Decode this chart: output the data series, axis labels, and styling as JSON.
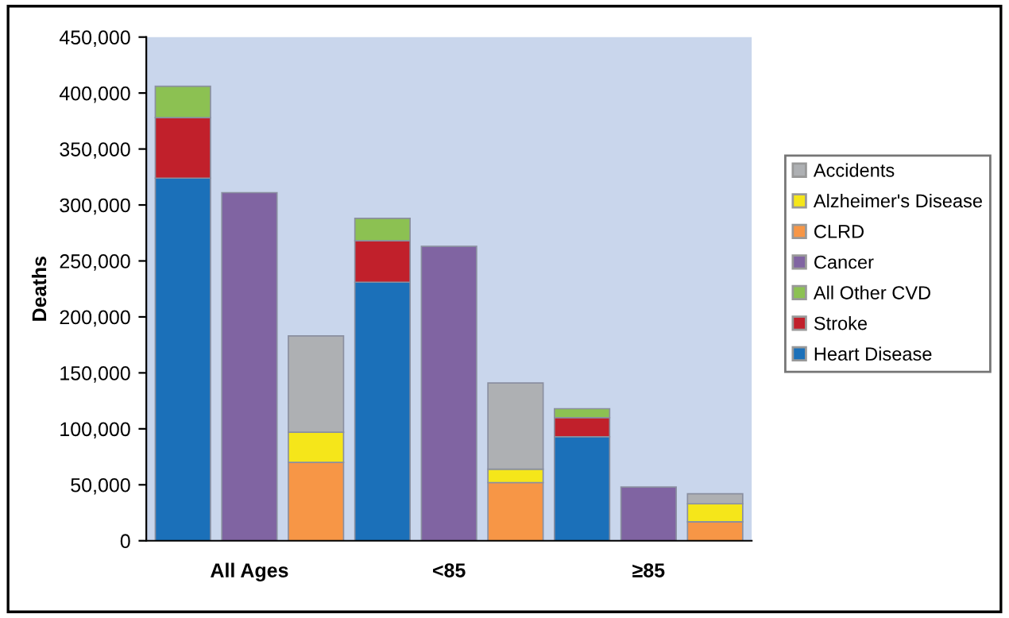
{
  "chart_data": {
    "type": "bar",
    "stacked": true,
    "ylabel": "Deaths",
    "categories": [
      null,
      "All Ages",
      null,
      null,
      "<85",
      null,
      null,
      "≥85",
      null
    ],
    "series": [
      {
        "name": "Heart Disease",
        "color": "#1b70b9",
        "values": [
          324000,
          null,
          null,
          231000,
          null,
          null,
          93000,
          null,
          null
        ]
      },
      {
        "name": "Stroke",
        "color": "#c1202b",
        "values": [
          54000,
          null,
          null,
          37000,
          null,
          null,
          17000,
          null,
          null
        ]
      },
      {
        "name": "All Other CVD",
        "color": "#8cc152",
        "values": [
          28000,
          null,
          null,
          20000,
          null,
          null,
          8000,
          null,
          null
        ]
      },
      {
        "name": "Cancer",
        "color": "#8064a2",
        "values": [
          null,
          311000,
          null,
          null,
          263000,
          null,
          null,
          48000,
          null
        ]
      },
      {
        "name": "CLRD",
        "color": "#f79646",
        "values": [
          null,
          null,
          70000,
          null,
          null,
          52000,
          null,
          null,
          17000
        ]
      },
      {
        "name": "Alzheimer's Disease",
        "color": "#f5e61a",
        "values": [
          null,
          null,
          27000,
          null,
          null,
          12000,
          null,
          null,
          16000
        ]
      },
      {
        "name": "Accidents",
        "color": "#aeb0b3",
        "values": [
          null,
          null,
          86000,
          null,
          null,
          77000,
          null,
          null,
          9000
        ]
      }
    ],
    "ylim": [
      0,
      450000
    ],
    "yticks": [
      0,
      {
        "value": 50000,
        "label": "50,000"
      },
      {
        "value": 100000,
        "label": "100,000"
      },
      {
        "value": 150000,
        "label": "150,000"
      },
      {
        "value": 200000,
        "label": "200,000"
      },
      {
        "value": 250000,
        "label": "250,000"
      },
      {
        "value": 300000,
        "label": "300,000"
      },
      {
        "value": 350000,
        "label": "350,000"
      },
      {
        "value": 400000,
        "label": "400,000"
      },
      {
        "value": 450000,
        "label": "450,000"
      }
    ],
    "grid": false,
    "legend": "right"
  }
}
